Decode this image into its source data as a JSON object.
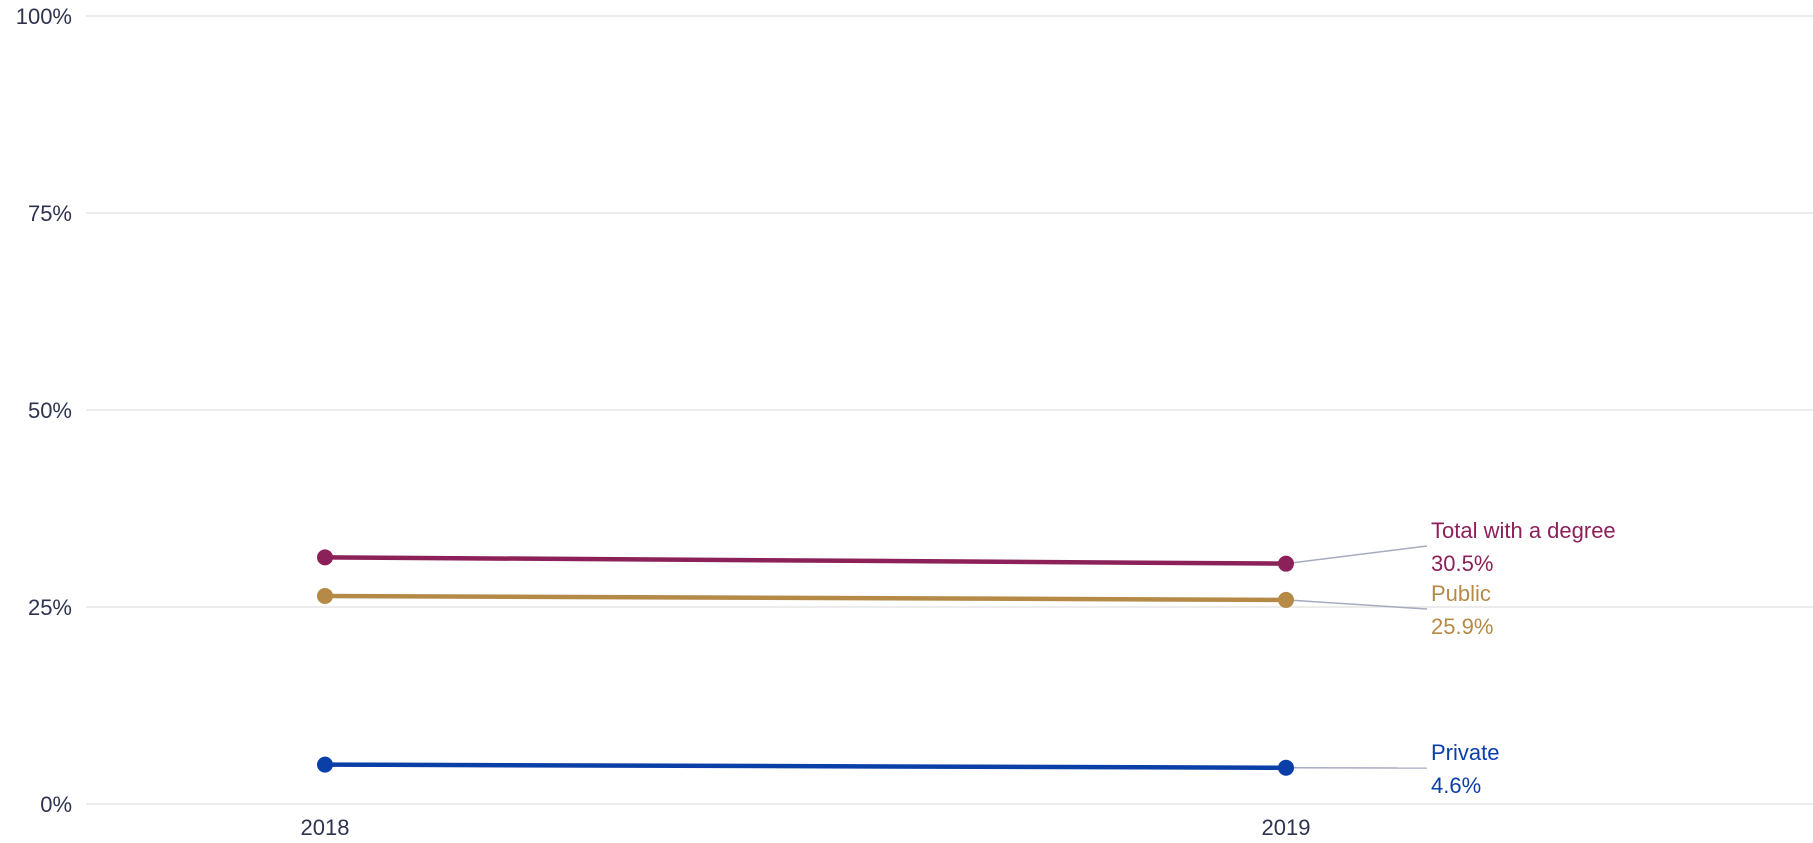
{
  "chart_data": {
    "type": "line",
    "x": [
      "2018",
      "2019"
    ],
    "ylim": [
      0,
      100
    ],
    "y_ticks": [
      0,
      25,
      50,
      75,
      100
    ],
    "y_tick_labels": [
      "0%",
      "25%",
      "50%",
      "75%",
      "100%"
    ],
    "grid": true,
    "series": [
      {
        "name": "Total with a degree",
        "values": [
          31.3,
          30.5
        ],
        "value_label": "30.5%",
        "color": "#8b2158"
      },
      {
        "name": "Public",
        "values": [
          26.4,
          25.9
        ],
        "value_label": "25.9%",
        "color": "#b58a47"
      },
      {
        "name": "Private",
        "values": [
          5.0,
          4.6
        ],
        "value_label": "4.6%",
        "color": "#0a3fa8"
      }
    ]
  }
}
